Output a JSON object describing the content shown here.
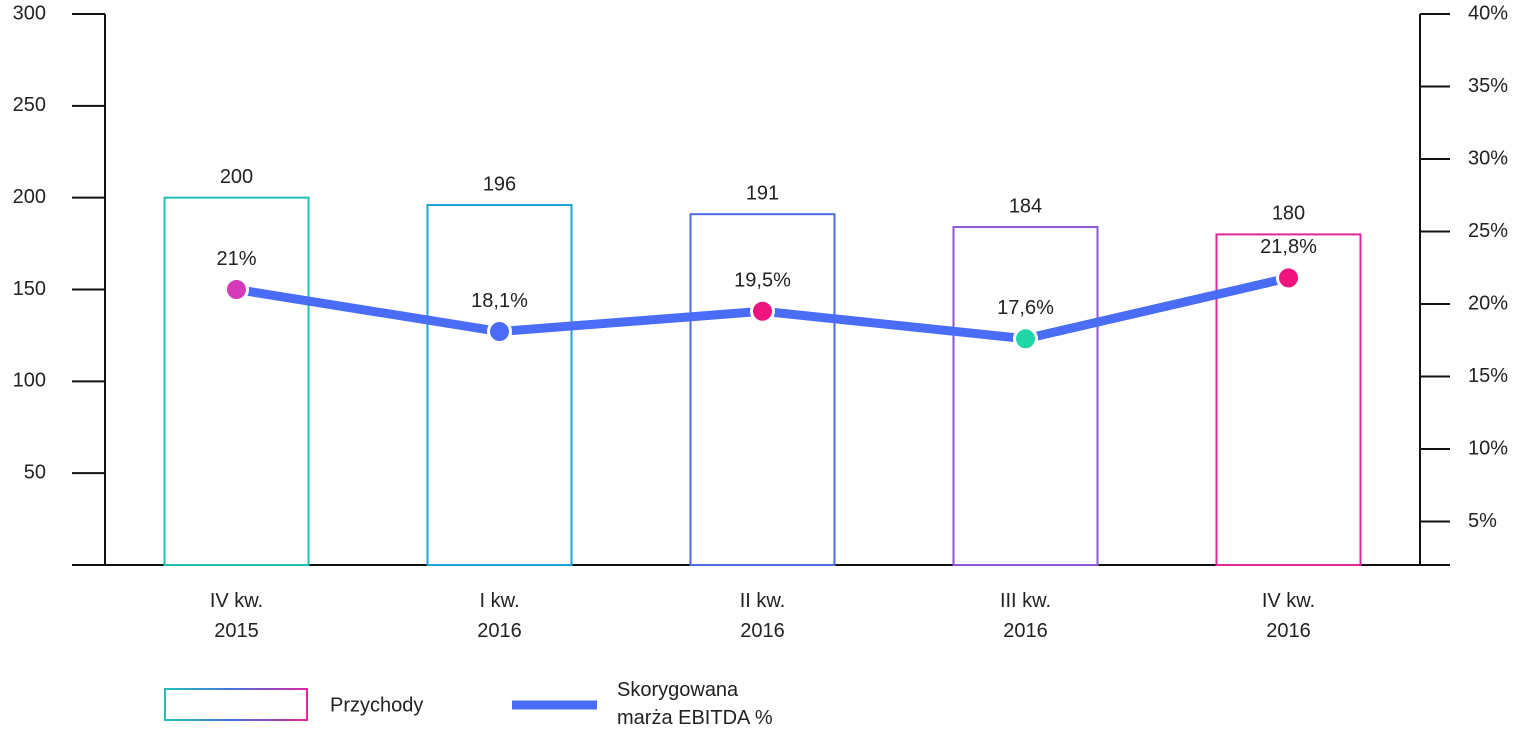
{
  "chart_data": {
    "type": "combo",
    "categories": [
      "IV kw.\n2015",
      "I kw.\n2016",
      "II kw.\n2016",
      "III kw.\n2016",
      "IV kw.\n2016"
    ],
    "series": [
      {
        "name": "Przychody",
        "type": "bar",
        "colors": [
          "#1fc1b6",
          "#1fa3d6",
          "#4a6ee0",
          "#8a5ad6",
          "#e0269f"
        ],
        "values": [
          200,
          196,
          191,
          184,
          180
        ]
      },
      {
        "name": "Skorygowana\nmarża EBITDA %",
        "type": "line",
        "axis": "y2",
        "color": "#4a6cf7",
        "point_colors": [
          "#d43ab8",
          "#4a6cf7",
          "#f0157e",
          "#1ed6a6",
          "#f0157e"
        ],
        "values": [
          21,
          18.1,
          19.5,
          17.6,
          21.8
        ],
        "value_labels": [
          "21%",
          "18,1%",
          "19,5%",
          "17,6%",
          "21,8%"
        ]
      }
    ],
    "ylim": [
      0,
      300
    ],
    "yticks": [
      50,
      100,
      150,
      200,
      250,
      300
    ],
    "y2lim": [
      2,
      40
    ],
    "y2ticks": [
      {
        "value": 5,
        "label": "5%"
      },
      {
        "value": 10,
        "label": "10%"
      },
      {
        "value": 15,
        "label": "15%"
      },
      {
        "value": 20,
        "label": "20%"
      },
      {
        "value": 25,
        "label": "25%"
      },
      {
        "value": 30,
        "label": "30%"
      },
      {
        "value": 35,
        "label": "35%"
      },
      {
        "value": 40,
        "label": "40%"
      }
    ]
  }
}
